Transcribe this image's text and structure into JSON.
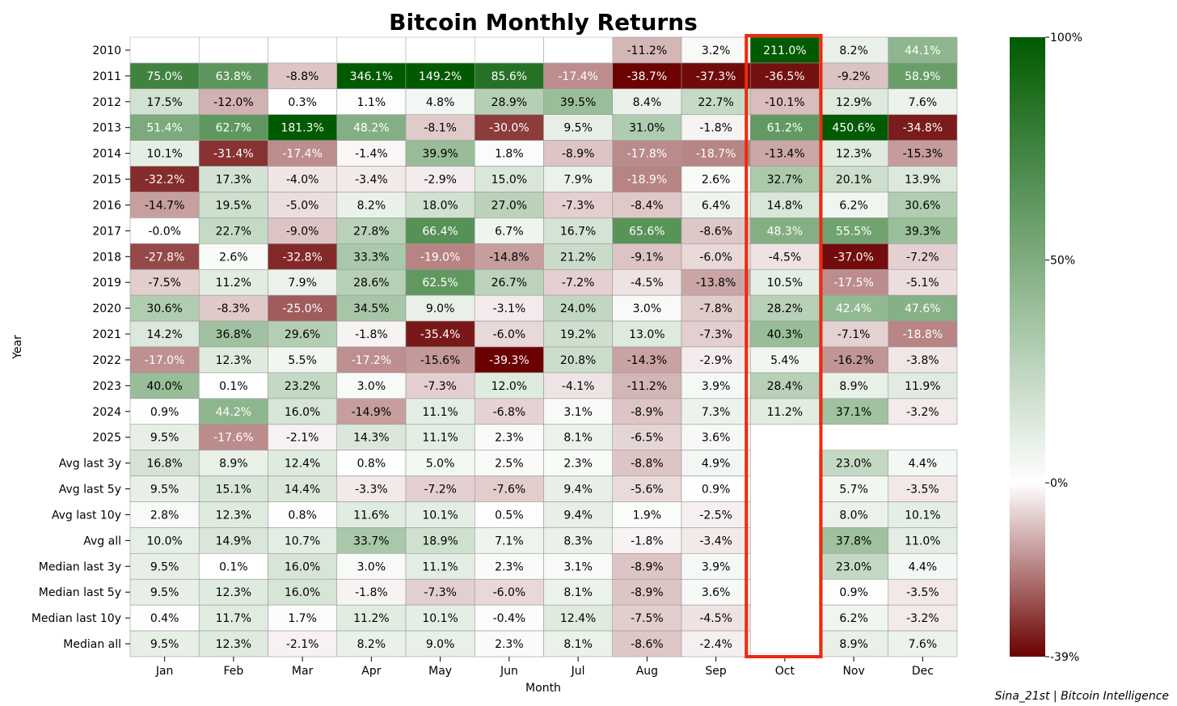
{
  "chart_data": {
    "type": "heatmap",
    "title": "Bitcoin Monthly Returns",
    "xlabel": "Month",
    "ylabel": "Year",
    "columns": [
      "Jan",
      "Feb",
      "Mar",
      "Apr",
      "May",
      "Jun",
      "Jul",
      "Aug",
      "Sep",
      "Oct",
      "Nov",
      "Dec"
    ],
    "rows": [
      "2010",
      "2011",
      "2012",
      "2013",
      "2014",
      "2015",
      "2016",
      "2017",
      "2018",
      "2019",
      "2020",
      "2021",
      "2022",
      "2023",
      "2024",
      "2025",
      "Avg last 3y",
      "Avg last 5y",
      "Avg last 10y",
      "Avg all",
      "Median last 3y",
      "Median last 5y",
      "Median last 10y",
      "Median all"
    ],
    "values": [
      [
        null,
        null,
        null,
        null,
        null,
        null,
        null,
        -11.2,
        3.2,
        211.0,
        8.2,
        44.1
      ],
      [
        75.0,
        63.8,
        -8.8,
        346.1,
        149.2,
        85.6,
        -17.4,
        -38.7,
        -37.3,
        -36.5,
        -9.2,
        58.9
      ],
      [
        17.5,
        -12.0,
        0.3,
        1.1,
        4.8,
        28.9,
        39.5,
        8.4,
        22.7,
        -10.1,
        12.9,
        7.6
      ],
      [
        51.4,
        62.7,
        181.3,
        48.2,
        -8.1,
        -30.0,
        9.5,
        31.0,
        -1.8,
        61.2,
        450.6,
        -34.8
      ],
      [
        10.1,
        -31.4,
        -17.4,
        -1.4,
        39.9,
        1.8,
        -8.9,
        -17.8,
        -18.7,
        -13.4,
        12.3,
        -15.3
      ],
      [
        -32.2,
        17.3,
        -4.0,
        -3.4,
        -2.9,
        15.0,
        7.9,
        -18.9,
        2.6,
        32.7,
        20.1,
        13.9
      ],
      [
        -14.7,
        19.5,
        -5.0,
        8.2,
        18.0,
        27.0,
        -7.3,
        -8.4,
        6.4,
        14.8,
        6.2,
        30.6
      ],
      [
        -0.0,
        22.7,
        -9.0,
        27.8,
        66.4,
        6.7,
        16.7,
        65.6,
        -8.6,
        48.3,
        55.5,
        39.3
      ],
      [
        -27.8,
        2.6,
        -32.8,
        33.3,
        -19.0,
        -14.8,
        21.2,
        -9.1,
        -6.0,
        -4.5,
        -37.0,
        -7.2
      ],
      [
        -7.5,
        11.2,
        7.9,
        28.6,
        62.5,
        26.7,
        -7.2,
        -4.5,
        -13.8,
        10.5,
        -17.5,
        -5.1
      ],
      [
        30.6,
        -8.3,
        -25.0,
        34.5,
        9.0,
        -3.1,
        24.0,
        3.0,
        -7.8,
        28.2,
        42.4,
        47.6
      ],
      [
        14.2,
        36.8,
        29.6,
        -1.8,
        -35.4,
        -6.0,
        19.2,
        13.0,
        -7.3,
        40.3,
        -7.1,
        -18.8
      ],
      [
        -17.0,
        12.3,
        5.5,
        -17.2,
        -15.6,
        -39.3,
        20.8,
        -14.3,
        -2.9,
        5.4,
        -16.2,
        -3.8
      ],
      [
        40.0,
        0.1,
        23.2,
        3.0,
        -7.3,
        12.0,
        -4.1,
        -11.2,
        3.9,
        28.4,
        8.9,
        11.9
      ],
      [
        0.9,
        44.2,
        16.0,
        -14.9,
        11.1,
        -6.8,
        3.1,
        -8.9,
        7.3,
        11.2,
        37.1,
        -3.2
      ],
      [
        9.5,
        -17.6,
        -2.1,
        14.3,
        11.1,
        2.3,
        8.1,
        -6.5,
        3.6,
        null,
        null,
        null
      ],
      [
        16.8,
        8.9,
        12.4,
        0.8,
        5.0,
        2.5,
        2.3,
        -8.8,
        4.9,
        null,
        23.0,
        4.4
      ],
      [
        9.5,
        15.1,
        14.4,
        -3.3,
        -7.2,
        -7.6,
        9.4,
        -5.6,
        0.9,
        null,
        5.7,
        -3.5
      ],
      [
        2.8,
        12.3,
        0.8,
        11.6,
        10.1,
        0.5,
        9.4,
        1.9,
        -2.5,
        null,
        8.0,
        10.1
      ],
      [
        10.0,
        14.9,
        10.7,
        33.7,
        18.9,
        7.1,
        8.3,
        -1.8,
        -3.4,
        null,
        37.8,
        11.0
      ],
      [
        9.5,
        0.1,
        16.0,
        3.0,
        11.1,
        2.3,
        3.1,
        -8.9,
        3.9,
        null,
        23.0,
        4.4
      ],
      [
        9.5,
        12.3,
        16.0,
        -1.8,
        -7.3,
        -6.0,
        8.1,
        -8.9,
        3.6,
        null,
        0.9,
        -3.5
      ],
      [
        0.4,
        11.7,
        1.7,
        11.2,
        10.1,
        -0.4,
        12.4,
        -7.5,
        -4.5,
        null,
        6.2,
        -3.2
      ],
      [
        9.5,
        12.3,
        -2.1,
        8.2,
        9.0,
        2.3,
        8.1,
        -8.6,
        -2.4,
        null,
        8.9,
        7.6
      ]
    ],
    "labels": [
      [
        "",
        "",
        "",
        "",
        "",
        "",
        "",
        "-11.2%",
        "3.2%",
        "211.0%",
        "8.2%",
        "44.1%"
      ],
      [
        "75.0%",
        "63.8%",
        "-8.8%",
        "346.1%",
        "149.2%",
        "85.6%",
        "-17.4%",
        "-38.7%",
        "-37.3%",
        "-36.5%",
        "-9.2%",
        "58.9%"
      ],
      [
        "17.5%",
        "-12.0%",
        "0.3%",
        "1.1%",
        "4.8%",
        "28.9%",
        "39.5%",
        "8.4%",
        "22.7%",
        "-10.1%",
        "12.9%",
        "7.6%"
      ],
      [
        "51.4%",
        "62.7%",
        "181.3%",
        "48.2%",
        "-8.1%",
        "-30.0%",
        "9.5%",
        "31.0%",
        "-1.8%",
        "61.2%",
        "450.6%",
        "-34.8%"
      ],
      [
        "10.1%",
        "-31.4%",
        "-17.4%",
        "-1.4%",
        "39.9%",
        "1.8%",
        "-8.9%",
        "-17.8%",
        "-18.7%",
        "-13.4%",
        "12.3%",
        "-15.3%"
      ],
      [
        "-32.2%",
        "17.3%",
        "-4.0%",
        "-3.4%",
        "-2.9%",
        "15.0%",
        "7.9%",
        "-18.9%",
        "2.6%",
        "32.7%",
        "20.1%",
        "13.9%"
      ],
      [
        "-14.7%",
        "19.5%",
        "-5.0%",
        "8.2%",
        "18.0%",
        "27.0%",
        "-7.3%",
        "-8.4%",
        "6.4%",
        "14.8%",
        "6.2%",
        "30.6%"
      ],
      [
        "-0.0%",
        "22.7%",
        "-9.0%",
        "27.8%",
        "66.4%",
        "6.7%",
        "16.7%",
        "65.6%",
        "-8.6%",
        "48.3%",
        "55.5%",
        "39.3%"
      ],
      [
        "-27.8%",
        "2.6%",
        "-32.8%",
        "33.3%",
        "-19.0%",
        "-14.8%",
        "21.2%",
        "-9.1%",
        "-6.0%",
        "-4.5%",
        "-37.0%",
        "-7.2%"
      ],
      [
        "-7.5%",
        "11.2%",
        "7.9%",
        "28.6%",
        "62.5%",
        "26.7%",
        "-7.2%",
        "-4.5%",
        "-13.8%",
        "10.5%",
        "-17.5%",
        "-5.1%"
      ],
      [
        "30.6%",
        "-8.3%",
        "-25.0%",
        "34.5%",
        "9.0%",
        "-3.1%",
        "24.0%",
        "3.0%",
        "-7.8%",
        "28.2%",
        "42.4%",
        "47.6%"
      ],
      [
        "14.2%",
        "36.8%",
        "29.6%",
        "-1.8%",
        "-35.4%",
        "-6.0%",
        "19.2%",
        "13.0%",
        "-7.3%",
        "40.3%",
        "-7.1%",
        "-18.8%"
      ],
      [
        "-17.0%",
        "12.3%",
        "5.5%",
        "-17.2%",
        "-15.6%",
        "-39.3%",
        "20.8%",
        "-14.3%",
        "-2.9%",
        "5.4%",
        "-16.2%",
        "-3.8%"
      ],
      [
        "40.0%",
        "0.1%",
        "23.2%",
        "3.0%",
        "-7.3%",
        "12.0%",
        "-4.1%",
        "-11.2%",
        "3.9%",
        "28.4%",
        "8.9%",
        "11.9%"
      ],
      [
        "0.9%",
        "44.2%",
        "16.0%",
        "-14.9%",
        "11.1%",
        "-6.8%",
        "3.1%",
        "-8.9%",
        "7.3%",
        "11.2%",
        "37.1%",
        "-3.2%"
      ],
      [
        "9.5%",
        "-17.6%",
        "-2.1%",
        "14.3%",
        "11.1%",
        "2.3%",
        "8.1%",
        "-6.5%",
        "3.6%",
        "",
        "",
        ""
      ],
      [
        "16.8%",
        "8.9%",
        "12.4%",
        "0.8%",
        "5.0%",
        "2.5%",
        "2.3%",
        "-8.8%",
        "4.9%",
        "",
        "23.0%",
        "4.4%"
      ],
      [
        "9.5%",
        "15.1%",
        "14.4%",
        "-3.3%",
        "-7.2%",
        "-7.6%",
        "9.4%",
        "-5.6%",
        "0.9%",
        "",
        "5.7%",
        "-3.5%"
      ],
      [
        "2.8%",
        "12.3%",
        "0.8%",
        "11.6%",
        "10.1%",
        "0.5%",
        "9.4%",
        "1.9%",
        "-2.5%",
        "",
        "8.0%",
        "10.1%"
      ],
      [
        "10.0%",
        "14.9%",
        "10.7%",
        "33.7%",
        "18.9%",
        "7.1%",
        "8.3%",
        "-1.8%",
        "-3.4%",
        "",
        "37.8%",
        "11.0%"
      ],
      [
        "9.5%",
        "0.1%",
        "16.0%",
        "3.0%",
        "11.1%",
        "2.3%",
        "3.1%",
        "-8.9%",
        "3.9%",
        "",
        "23.0%",
        "4.4%"
      ],
      [
        "9.5%",
        "12.3%",
        "16.0%",
        "-1.8%",
        "-7.3%",
        "-6.0%",
        "8.1%",
        "-8.9%",
        "3.6%",
        "",
        "0.9%",
        "-3.5%"
      ],
      [
        "0.4%",
        "11.7%",
        "1.7%",
        "11.2%",
        "10.1%",
        "-0.4%",
        "12.4%",
        "-7.5%",
        "-4.5%",
        "",
        "6.2%",
        "-3.2%"
      ],
      [
        "9.5%",
        "12.3%",
        "-2.1%",
        "8.2%",
        "9.0%",
        "2.3%",
        "8.1%",
        "-8.6%",
        "-2.4%",
        "",
        "8.9%",
        "7.6%"
      ]
    ],
    "color_range": [
      -39,
      100
    ],
    "colorbar_ticks": [
      "100%",
      "50%",
      "0%",
      "-39%"
    ],
    "colorbar_tick_values": [
      100,
      50,
      0,
      -39
    ],
    "colors": {
      "negative": "#6b0000",
      "zero": "#ffffff",
      "positive": "#005a00",
      "highlight": "#ee2a0e"
    },
    "highlight_column": "Oct",
    "grid": true,
    "legend": "colorbar right",
    "credit": "Sina_21st | Bitcoin Intelligence"
  }
}
